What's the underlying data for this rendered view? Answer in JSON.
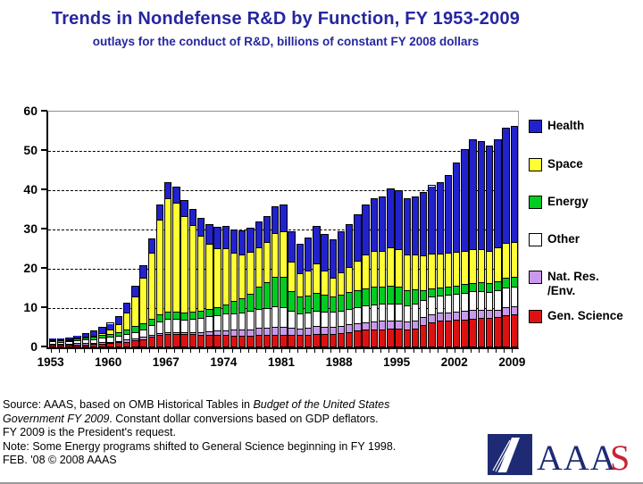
{
  "title": "Trends in Nondefense R&D by Function, FY 1953-2009",
  "subtitle": "outlays for the conduct of R&D, billions of constant FY 2008 dollars",
  "colors": {
    "title_text": "#2626A0",
    "health": "#2222CC",
    "space": "#FFFF33",
    "energy": "#00CC22",
    "other": "#FFFFFF",
    "nat_res": "#C999EC",
    "gen_science": "#DD1111",
    "logo_navy": "#1E2B74",
    "logo_red": "#CC2233"
  },
  "legend": {
    "items": [
      {
        "label": "Health",
        "label2": "",
        "color": "#2222CC"
      },
      {
        "label": "Space",
        "label2": "",
        "color": "#FFFF33"
      },
      {
        "label": "Energy",
        "label2": "",
        "color": "#00CC22"
      },
      {
        "label": "Other",
        "label2": "",
        "color": "#FFFFFF"
      },
      {
        "label": "Nat. Res.",
        "label2": "/Env.",
        "color": "#C999EC"
      },
      {
        "label": "Gen. Science",
        "label2": "",
        "color": "#DD1111"
      }
    ]
  },
  "chart_data": {
    "type": "bar",
    "subtype": "stacked",
    "title": "Trends in Nondefense R&D by Function, FY 1953-2009",
    "subtitle": "outlays for the conduct of R&D, billions of constant FY 2008 dollars",
    "xlabel": "",
    "ylabel": "billions of constant FY 2008 dollars",
    "ylim": [
      0,
      60
    ],
    "yticks": [
      0,
      10,
      20,
      30,
      40,
      50,
      60
    ],
    "grid": "dashed horizontal at 10-50, solid gray at 60",
    "legend_position": "right",
    "x_first_year": 1953,
    "x_last_year": 2009,
    "x_tick_labels": [
      "1953",
      "1960",
      "1967",
      "1974",
      "1981",
      "1988",
      "1995",
      "2002",
      "2009"
    ],
    "x_tick_indices": [
      0,
      7,
      14,
      21,
      28,
      35,
      42,
      49,
      56
    ],
    "stack_order_bottom_to_top": [
      "Gen. Science",
      "Nat. Res./Env.",
      "Other",
      "Energy",
      "Space",
      "Health"
    ],
    "series": [
      {
        "name": "Gen. Science",
        "color": "#DD1111",
        "values": [
          0.2,
          0.2,
          0.2,
          0.3,
          0.3,
          0.4,
          0.5,
          0.6,
          0.8,
          1.0,
          1.3,
          1.7,
          2.2,
          2.7,
          3.0,
          3.0,
          2.9,
          2.9,
          2.8,
          2.8,
          2.8,
          2.7,
          2.6,
          2.6,
          2.6,
          2.7,
          2.7,
          2.8,
          2.8,
          2.7,
          2.7,
          2.8,
          3.0,
          3.0,
          3.0,
          3.2,
          3.5,
          3.8,
          4.0,
          4.1,
          4.2,
          4.3,
          4.3,
          4.2,
          4.4,
          5.2,
          6.0,
          6.3,
          6.4,
          6.5,
          6.7,
          6.9,
          7.0,
          7.0,
          7.2,
          7.8,
          8.0
        ]
      },
      {
        "name": "Nat. Res./Env.",
        "color": "#C999EC",
        "values": [
          0.2,
          0.2,
          0.2,
          0.3,
          0.3,
          0.3,
          0.4,
          0.4,
          0.4,
          0.5,
          0.5,
          0.5,
          0.5,
          0.5,
          0.5,
          0.5,
          0.5,
          0.6,
          0.7,
          0.9,
          1.0,
          1.2,
          1.4,
          1.5,
          1.6,
          1.8,
          1.9,
          2.0,
          2.0,
          1.9,
          1.7,
          1.8,
          1.9,
          1.8,
          1.8,
          1.8,
          1.9,
          1.9,
          2.0,
          2.1,
          2.1,
          2.1,
          2.1,
          2.0,
          2.0,
          2.0,
          2.0,
          2.0,
          2.1,
          2.1,
          2.1,
          2.1,
          2.1,
          2.0,
          2.0,
          2.0,
          2.0
        ]
      },
      {
        "name": "Other",
        "color": "#FFFFFF",
        "values": [
          0.7,
          0.6,
          0.7,
          0.8,
          0.9,
          1.0,
          1.1,
          1.2,
          1.3,
          1.5,
          1.7,
          2.0,
          2.5,
          3.0,
          3.3,
          3.3,
          3.2,
          3.3,
          3.5,
          3.8,
          4.0,
          4.2,
          4.3,
          4.4,
          4.6,
          4.9,
          5.0,
          5.1,
          5.0,
          4.2,
          3.8,
          3.8,
          4.0,
          3.9,
          3.8,
          3.9,
          4.0,
          4.1,
          4.2,
          4.3,
          4.3,
          4.4,
          4.3,
          4.1,
          4.2,
          4.3,
          4.4,
          4.4,
          4.5,
          4.6,
          4.7,
          4.8,
          4.8,
          4.7,
          4.8,
          4.9,
          4.9
        ]
      },
      {
        "name": "Energy",
        "color": "#00CC22",
        "values": [
          0.3,
          0.3,
          0.3,
          0.4,
          0.5,
          0.6,
          0.7,
          0.8,
          1.0,
          1.2,
          1.4,
          1.6,
          1.7,
          1.8,
          1.9,
          1.9,
          1.8,
          1.8,
          1.8,
          1.9,
          2.0,
          2.4,
          3.0,
          3.6,
          4.5,
          5.5,
          6.5,
          7.5,
          7.8,
          5.0,
          4.2,
          4.3,
          4.5,
          4.2,
          3.9,
          4.0,
          4.2,
          4.2,
          4.3,
          4.4,
          4.4,
          4.5,
          4.3,
          3.8,
          3.7,
          2.5,
          2.2,
          2.1,
          2.1,
          2.1,
          2.1,
          2.1,
          2.2,
          2.2,
          2.4,
          2.6,
          2.7
        ]
      },
      {
        "name": "Space",
        "color": "#FFFF33",
        "values": [
          0.1,
          0.1,
          0.1,
          0.1,
          0.2,
          0.3,
          0.6,
          1.0,
          2.0,
          4.2,
          7.5,
          11.5,
          16.8,
          24.0,
          28.7,
          27.7,
          24.6,
          22.0,
          19.2,
          16.6,
          15.0,
          14.2,
          12.4,
          11.2,
          10.5,
          10.1,
          10.2,
          11.2,
          11.4,
          7.5,
          6.0,
          6.3,
          7.6,
          6.3,
          4.8,
          5.8,
          6.4,
          7.5,
          8.7,
          9.1,
          9.0,
          9.7,
          9.5,
          9.0,
          9.0,
          9.0,
          8.9,
          8.7,
          8.6,
          8.5,
          8.5,
          8.6,
          8.5,
          8.3,
          8.5,
          8.8,
          8.8
        ]
      },
      {
        "name": "Health",
        "color": "#2222CC",
        "values": [
          0.4,
          0.4,
          0.5,
          0.6,
          1.0,
          1.3,
          1.5,
          1.8,
          2.1,
          2.5,
          2.8,
          3.2,
          3.6,
          4.0,
          4.1,
          4.1,
          4.0,
          4.2,
          4.5,
          5.0,
          5.5,
          5.8,
          5.8,
          6.0,
          6.2,
          6.5,
          6.7,
          6.9,
          7.0,
          7.8,
          7.6,
          8.5,
          9.5,
          9.3,
          9.7,
          10.3,
          11.0,
          12.0,
          12.8,
          13.5,
          14.0,
          15.0,
          15.0,
          14.4,
          14.7,
          16.0,
          17.3,
          18.0,
          19.8,
          22.7,
          25.9,
          28.0,
          27.4,
          26.8,
          27.6,
          29.4,
          29.6
        ]
      }
    ]
  },
  "source": {
    "line1_plain": "Source: AAAS, based on OMB Historical Tables in ",
    "line1_italic": "Budget of the United States",
    "line2_italic": "Government FY 2009",
    "line2_plain": ".  Constant dollar conversions based on  GDP deflators.",
    "line3": "FY 2009 is the President's request.",
    "line4": "Note: Some Energy programs shifted to General Science beginning in FY 1998.",
    "line5": "FEB. '08 © 2008 AAAS"
  },
  "logo": {
    "text_navy": "AAA",
    "text_red": "S"
  }
}
